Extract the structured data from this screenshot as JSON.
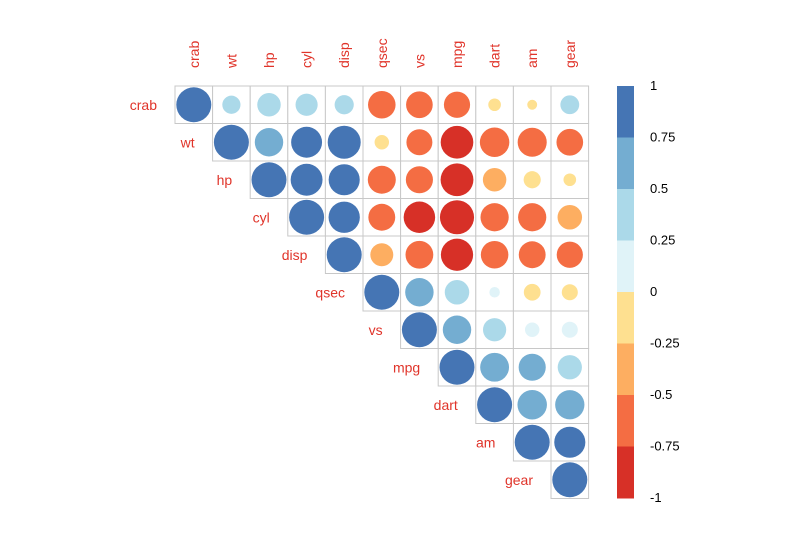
{
  "chart_data": {
    "type": "heatmap",
    "style": "correlation circles, upper triangle",
    "variables": [
      "crab",
      "wt",
      "hp",
      "cyl",
      "disp",
      "qsec",
      "vs",
      "mpg",
      "dart",
      "am",
      "gear"
    ],
    "matrix": [
      [
        1.0,
        0.27,
        0.45,
        0.4,
        0.3,
        -0.62,
        -0.58,
        -0.56,
        -0.13,
        -0.08,
        0.29
      ],
      [
        0.27,
        1.0,
        0.66,
        0.78,
        0.89,
        -0.17,
        -0.55,
        -0.87,
        -0.71,
        -0.69,
        -0.58
      ],
      [
        0.45,
        0.66,
        1.0,
        0.83,
        0.79,
        -0.64,
        -0.6,
        -0.88,
        -0.45,
        -0.24,
        -0.13
      ],
      [
        0.4,
        0.78,
        0.83,
        1.0,
        0.8,
        -0.59,
        -0.81,
        -0.95,
        -0.65,
        -0.65,
        -0.49
      ],
      [
        0.3,
        0.89,
        0.79,
        0.8,
        1.0,
        -0.43,
        -0.63,
        -0.85,
        -0.62,
        -0.59,
        -0.56
      ],
      [
        -0.62,
        -0.17,
        -0.64,
        -0.59,
        -0.43,
        1.0,
        0.66,
        0.49,
        0.09,
        -0.23,
        -0.21
      ],
      [
        -0.58,
        -0.55,
        -0.6,
        -0.81,
        -0.63,
        0.66,
        1.0,
        0.66,
        0.44,
        0.17,
        0.21
      ],
      [
        -0.56,
        -0.87,
        -0.88,
        -0.95,
        -0.85,
        0.49,
        0.66,
        1.0,
        0.68,
        0.6,
        0.48
      ],
      [
        -0.13,
        -0.71,
        -0.45,
        -0.65,
        -0.62,
        0.09,
        0.44,
        0.68,
        1.0,
        0.71,
        0.7
      ],
      [
        -0.08,
        -0.69,
        -0.24,
        -0.65,
        -0.59,
        -0.23,
        0.17,
        0.6,
        0.71,
        1.0,
        0.79
      ],
      [
        0.29,
        -0.58,
        -0.13,
        -0.49,
        -0.56,
        -0.21,
        0.21,
        0.48,
        0.7,
        0.79,
        1.0
      ]
    ],
    "colorbar": {
      "range": [
        -1,
        1
      ],
      "ticks": [
        "1",
        "0.75",
        "0.5",
        "0.25",
        "0",
        "-0.25",
        "-0.5",
        "-0.75",
        "-1"
      ],
      "colors_top_to_bottom": [
        "#4575b4",
        "#74add1",
        "#abd9e9",
        "#e0f3f8",
        "#fee090",
        "#fdae61",
        "#f46d43",
        "#d73027"
      ]
    },
    "label_color": "#e0342a",
    "grid": true,
    "legend_position": "right"
  }
}
